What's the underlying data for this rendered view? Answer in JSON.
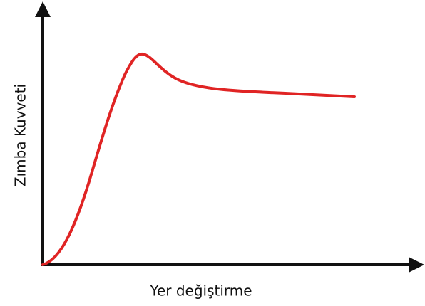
{
  "axes": {
    "y_label": "Zımba Kuvveti",
    "x_label": "Yer değiştirme"
  }
}
